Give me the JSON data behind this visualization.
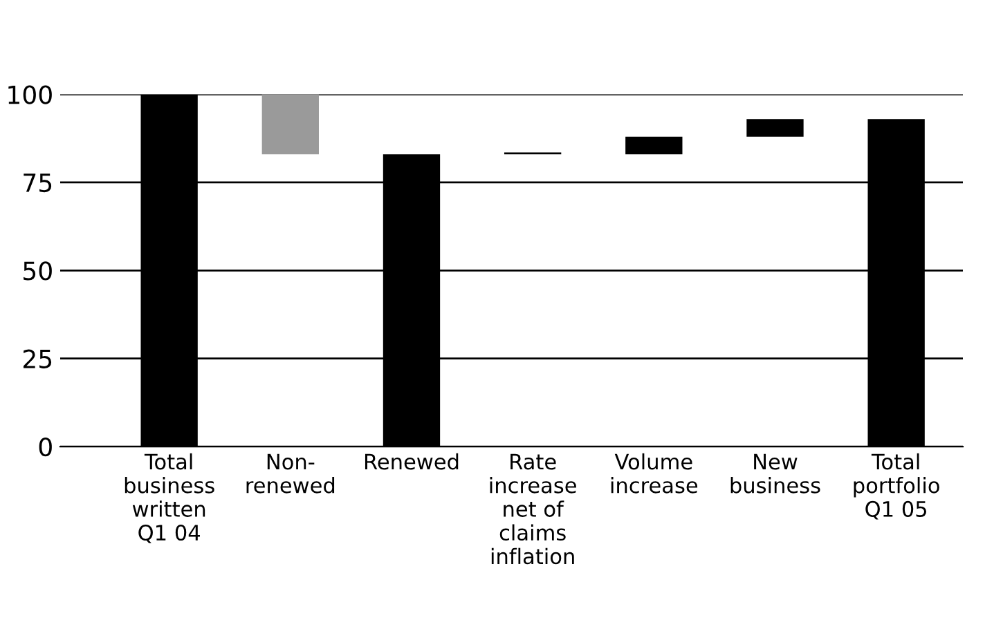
{
  "chart_data": {
    "type": "bar",
    "categories": [
      "Total\nbusiness\nwritten\nQ1 04",
      "Non-\nrenewed",
      "Renewed",
      "Rate\nincrease\nnet of\nclaims\ninflation",
      "Volume\nincrease",
      "New\nbusiness",
      "Total\nportfolio\nQ1 05"
    ],
    "values": [
      100,
      17,
      83,
      0.5,
      5,
      5,
      93
    ],
    "base": [
      0,
      83,
      0,
      83,
      83,
      88,
      0
    ],
    "colors": [
      "#000000",
      "#9a9a9a",
      "#000000",
      "#000000",
      "#000000",
      "#000000",
      "#000000"
    ],
    "ylim": [
      0,
      100
    ],
    "yticks": [
      0,
      25,
      50,
      75,
      100
    ],
    "grid": "y"
  }
}
